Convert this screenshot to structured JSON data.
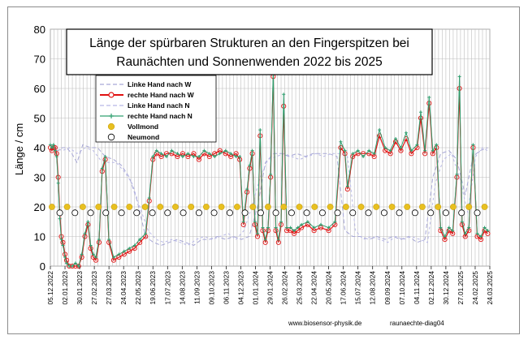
{
  "chart_data": {
    "type": "line",
    "title_line1": "Länge der spürbaren Strukturen an den Fingerspitzen bei",
    "title_line2": "Raunächten  und Sonnenwenden 2022 bis 2025",
    "ylabel": "Länge / cm",
    "xlabel": "",
    "ylim": [
      0,
      80
    ],
    "y_ticks": [
      "0",
      "10",
      "20",
      "30",
      "40",
      "50",
      "60",
      "70",
      "80"
    ],
    "x_range": [
      "2022-12-05",
      "2025-03-24"
    ],
    "x_ticks": [
      "05.12.2022",
      "02.01.2023",
      "30.01.2023",
      "27.02.2023",
      "27.03.2023",
      "24.04.2023",
      "22.05.2023",
      "19.06.2023",
      "17.07.2023",
      "14.08.2023",
      "11.09.2023",
      "09.10.2023",
      "06.11.2023",
      "04.12.2023",
      "01.01.2024",
      "29.01.2024",
      "26.02.2024",
      "25.03.2024",
      "22.04.2024",
      "20.05.2024",
      "17.06.2024",
      "15.07.2024",
      "12.08.2024",
      "09.09.2024",
      "07.10.2024",
      "04.11.2024",
      "02.12.2024",
      "30.12.2024",
      "27.01.2025",
      "24.02.2025",
      "24.03.2025"
    ],
    "grid": true,
    "legend_placement": "top-left",
    "legend": [
      {
        "label": "Linke Hand nach W",
        "style": "dashed",
        "color": "#a7a7d6"
      },
      {
        "label": "rechte Hand nach W",
        "style": "line-circle",
        "color": "#e01010"
      },
      {
        "label": "Linke Hand nach N",
        "style": "dashed",
        "color": "#b8b8e6"
      },
      {
        "label": "rechte Hand nach N",
        "style": "line-plus",
        "color": "#30a070"
      },
      {
        "label": "Vollmond",
        "style": "dot",
        "color": "#e8c020"
      },
      {
        "label": "Neumond",
        "style": "open-circle",
        "color": "#000000"
      }
    ],
    "footer_url": "www.biosensor-physik.de",
    "footer_id": "raunaechte-diag04",
    "series": [
      {
        "name": "Linke Hand nach W",
        "x": [
          "2022-12-05",
          "2022-12-12",
          "2022-12-20",
          "2022-12-28",
          "2023-01-05",
          "2023-01-15",
          "2023-01-25",
          "2023-02-05",
          "2023-02-20",
          "2023-03-05",
          "2023-03-20",
          "2023-04-05",
          "2023-04-20",
          "2023-05-05",
          "2023-05-20",
          "2023-06-05",
          "2023-06-20",
          "2023-07-05",
          "2023-07-20",
          "2023-08-05",
          "2023-08-20",
          "2023-09-05",
          "2023-09-20",
          "2023-10-05",
          "2023-10-20",
          "2023-11-05",
          "2023-11-20",
          "2023-12-05",
          "2023-12-20",
          "2024-01-05",
          "2024-01-20",
          "2024-02-05",
          "2024-02-20",
          "2024-03-05",
          "2024-03-20",
          "2024-04-05",
          "2024-04-20",
          "2024-05-05",
          "2024-05-20",
          "2024-06-05",
          "2024-06-20",
          "2024-07-05",
          "2024-07-20",
          "2024-08-05",
          "2024-08-20",
          "2024-09-05",
          "2024-09-20",
          "2024-10-05",
          "2024-10-20",
          "2024-11-05",
          "2024-11-20",
          "2024-12-05",
          "2024-12-20",
          "2025-01-05",
          "2025-01-20",
          "2025-02-05",
          "2025-02-20",
          "2025-03-05",
          "2025-03-20"
        ],
        "values": [
          40,
          39,
          39,
          40,
          40,
          38,
          35,
          41,
          40,
          40,
          37,
          36,
          34,
          30,
          22,
          10,
          8,
          7,
          8,
          9,
          8,
          7,
          9,
          9,
          10,
          9,
          10,
          9,
          10,
          20,
          35,
          38,
          38,
          37,
          38,
          37,
          38,
          38,
          38,
          37,
          12,
          10,
          10,
          9,
          10,
          9,
          10,
          9,
          10,
          8,
          9,
          30,
          38,
          39,
          36,
          24,
          37,
          39,
          40
        ]
      },
      {
        "name": "Linke Hand nach N",
        "x": [
          "2022-12-05",
          "2022-12-15",
          "2022-12-28",
          "2023-01-10",
          "2023-01-25",
          "2023-02-10",
          "2023-02-25",
          "2023-03-10",
          "2023-03-25",
          "2023-04-10",
          "2023-04-25",
          "2023-05-10",
          "2023-05-25",
          "2023-06-10",
          "2023-06-25",
          "2023-07-10",
          "2023-07-25",
          "2023-08-10",
          "2023-08-25",
          "2023-09-10",
          "2023-09-25",
          "2023-10-10",
          "2023-10-25",
          "2023-11-10",
          "2023-11-25",
          "2023-12-10",
          "2023-12-25",
          "2024-01-10",
          "2024-01-25",
          "2024-02-10",
          "2024-02-25",
          "2024-03-10",
          "2024-03-25",
          "2024-04-10",
          "2024-04-25",
          "2024-05-10",
          "2024-05-25",
          "2024-06-10",
          "2024-06-25",
          "2024-07-10",
          "2024-07-25",
          "2024-08-10",
          "2024-08-25",
          "2024-09-10",
          "2024-09-25",
          "2024-10-10",
          "2024-10-25",
          "2024-11-10",
          "2024-11-25",
          "2024-12-10",
          "2024-12-25",
          "2025-01-10",
          "2025-01-25",
          "2025-02-10",
          "2025-02-25",
          "2025-03-10",
          "2025-03-20"
        ],
        "values": [
          39,
          40,
          39,
          40,
          38,
          40,
          39,
          36,
          35,
          35,
          32,
          28,
          20,
          12,
          9,
          8,
          9,
          8,
          7,
          9,
          10,
          9,
          10,
          11,
          9,
          12,
          20,
          30,
          36,
          37,
          38,
          37,
          36,
          37,
          38,
          37,
          38,
          38,
          37,
          12,
          9,
          10,
          9,
          8,
          10,
          9,
          10,
          9,
          8,
          28,
          36,
          38,
          30,
          18,
          37,
          40,
          39
        ]
      },
      {
        "name": "rechte Hand nach W",
        "x": [
          "2022-12-05",
          "2022-12-08",
          "2022-12-11",
          "2022-12-14",
          "2022-12-17",
          "2022-12-20",
          "2022-12-23",
          "2022-12-26",
          "2022-12-29",
          "2023-01-02",
          "2023-01-05",
          "2023-01-10",
          "2023-01-16",
          "2023-01-22",
          "2023-01-28",
          "2023-02-03",
          "2023-02-09",
          "2023-02-15",
          "2023-02-20",
          "2023-02-25",
          "2023-03-02",
          "2023-03-08",
          "2023-03-14",
          "2023-03-20",
          "2023-03-27",
          "2023-04-05",
          "2023-04-15",
          "2023-04-25",
          "2023-05-05",
          "2023-05-15",
          "2023-05-25",
          "2023-06-05",
          "2023-06-12",
          "2023-06-19",
          "2023-06-26",
          "2023-07-05",
          "2023-07-15",
          "2023-07-25",
          "2023-08-05",
          "2023-08-15",
          "2023-08-25",
          "2023-09-05",
          "2023-09-15",
          "2023-09-25",
          "2023-10-05",
          "2023-10-15",
          "2023-10-25",
          "2023-11-05",
          "2023-11-15",
          "2023-11-25",
          "2023-12-02",
          "2023-12-09",
          "2023-12-16",
          "2023-12-21",
          "2023-12-26",
          "2023-12-31",
          "2024-01-05",
          "2024-01-10",
          "2024-01-15",
          "2024-01-20",
          "2024-01-25",
          "2024-01-30",
          "2024-02-04",
          "2024-02-09",
          "2024-02-14",
          "2024-02-19",
          "2024-02-24",
          "2024-03-01",
          "2024-03-08",
          "2024-03-15",
          "2024-03-22",
          "2024-03-29",
          "2024-04-10",
          "2024-04-22",
          "2024-05-05",
          "2024-05-20",
          "2024-06-01",
          "2024-06-12",
          "2024-06-20",
          "2024-06-25",
          "2024-07-05",
          "2024-07-15",
          "2024-07-25",
          "2024-08-05",
          "2024-08-15",
          "2024-08-25",
          "2024-09-05",
          "2024-09-15",
          "2024-09-25",
          "2024-10-05",
          "2024-10-15",
          "2024-10-25",
          "2024-11-05",
          "2024-11-12",
          "2024-11-20",
          "2024-11-28",
          "2024-12-05",
          "2024-12-12",
          "2024-12-20",
          "2024-12-28",
          "2025-01-05",
          "2025-01-12",
          "2025-01-20",
          "2025-01-25",
          "2025-01-30",
          "2025-02-05",
          "2025-02-12",
          "2025-02-20",
          "2025-02-28",
          "2025-03-07",
          "2025-03-14",
          "2025-03-20"
        ],
        "values": [
          40,
          39,
          40,
          40,
          38,
          30,
          18,
          10,
          8,
          4,
          2,
          0,
          0,
          0,
          0,
          3,
          10,
          14,
          6,
          3,
          2,
          8,
          32,
          36,
          8,
          2,
          3,
          4,
          5,
          6,
          8,
          10,
          22,
          36,
          38,
          37,
          38,
          38,
          37,
          38,
          37,
          38,
          36,
          38,
          37,
          38,
          39,
          38,
          37,
          38,
          36,
          14,
          25,
          33,
          38,
          14,
          10,
          44,
          12,
          8,
          12,
          30,
          64,
          12,
          8,
          14,
          54,
          12,
          12,
          11,
          12,
          13,
          14,
          12,
          13,
          12,
          14,
          40,
          38,
          26,
          37,
          38,
          38,
          38,
          37,
          44,
          39,
          38,
          42,
          39,
          43,
          38,
          40,
          50,
          38,
          55,
          38,
          40,
          12,
          9,
          12,
          11,
          30,
          60,
          14,
          10,
          12,
          40,
          10,
          9,
          12,
          11
        ]
      },
      {
        "name": "rechte Hand nach N",
        "x": [
          "2022-12-05",
          "2022-12-08",
          "2022-12-11",
          "2022-12-14",
          "2022-12-17",
          "2022-12-20",
          "2022-12-23",
          "2022-12-26",
          "2022-12-29",
          "2023-01-02",
          "2023-01-05",
          "2023-01-10",
          "2023-01-16",
          "2023-01-22",
          "2023-01-28",
          "2023-02-03",
          "2023-02-09",
          "2023-02-15",
          "2023-02-20",
          "2023-02-25",
          "2023-03-02",
          "2023-03-08",
          "2023-03-14",
          "2023-03-20",
          "2023-03-27",
          "2023-04-05",
          "2023-04-15",
          "2023-04-25",
          "2023-05-05",
          "2023-05-15",
          "2023-05-25",
          "2023-06-05",
          "2023-06-12",
          "2023-06-19",
          "2023-06-26",
          "2023-07-05",
          "2023-07-15",
          "2023-07-25",
          "2023-08-05",
          "2023-08-15",
          "2023-08-25",
          "2023-09-05",
          "2023-09-15",
          "2023-09-25",
          "2023-10-05",
          "2023-10-15",
          "2023-10-25",
          "2023-11-05",
          "2023-11-15",
          "2023-11-25",
          "2023-12-02",
          "2023-12-09",
          "2023-12-16",
          "2023-12-21",
          "2023-12-26",
          "2023-12-31",
          "2024-01-05",
          "2024-01-10",
          "2024-01-15",
          "2024-01-20",
          "2024-01-25",
          "2024-01-30",
          "2024-02-04",
          "2024-02-09",
          "2024-02-14",
          "2024-02-19",
          "2024-02-24",
          "2024-03-01",
          "2024-03-08",
          "2024-03-15",
          "2024-03-22",
          "2024-03-29",
          "2024-04-10",
          "2024-04-22",
          "2024-05-05",
          "2024-05-20",
          "2024-06-01",
          "2024-06-12",
          "2024-06-20",
          "2024-06-25",
          "2024-07-05",
          "2024-07-15",
          "2024-07-25",
          "2024-08-05",
          "2024-08-15",
          "2024-08-25",
          "2024-09-05",
          "2024-09-15",
          "2024-09-25",
          "2024-10-05",
          "2024-10-15",
          "2024-10-25",
          "2024-11-05",
          "2024-11-12",
          "2024-11-20",
          "2024-11-28",
          "2024-12-05",
          "2024-12-12",
          "2024-12-20",
          "2024-12-28",
          "2025-01-05",
          "2025-01-12",
          "2025-01-20",
          "2025-01-25",
          "2025-01-30",
          "2025-02-05",
          "2025-02-12",
          "2025-02-20",
          "2025-02-28",
          "2025-03-07",
          "2025-03-14",
          "2025-03-20"
        ],
        "values": [
          41,
          40,
          41,
          39,
          37,
          28,
          16,
          9,
          7,
          3,
          1,
          0,
          0,
          1,
          0,
          4,
          11,
          15,
          7,
          4,
          3,
          9,
          33,
          37,
          9,
          3,
          4,
          5,
          6,
          7,
          9,
          11,
          23,
          37,
          39,
          38,
          37,
          39,
          38,
          37,
          38,
          37,
          37,
          39,
          38,
          37,
          38,
          39,
          38,
          37,
          37,
          15,
          26,
          34,
          39,
          15,
          11,
          46,
          13,
          9,
          13,
          31,
          66,
          13,
          9,
          15,
          58,
          13,
          13,
          12,
          13,
          14,
          15,
          13,
          14,
          13,
          15,
          42,
          39,
          27,
          38,
          39,
          37,
          39,
          38,
          46,
          40,
          39,
          43,
          40,
          45,
          39,
          41,
          52,
          39,
          57,
          39,
          41,
          13,
          10,
          13,
          12,
          31,
          64,
          15,
          11,
          13,
          41,
          11,
          10,
          13,
          12
        ]
      },
      {
        "name": "Vollmond",
        "x": [
          "2022-12-08",
          "2023-01-06",
          "2023-02-05",
          "2023-03-07",
          "2023-04-06",
          "2023-05-05",
          "2023-06-04",
          "2023-07-03",
          "2023-08-01",
          "2023-08-31",
          "2023-09-29",
          "2023-10-28",
          "2023-11-27",
          "2023-12-27",
          "2024-01-25",
          "2024-02-24",
          "2024-03-25",
          "2024-04-23",
          "2024-05-23",
          "2024-06-22",
          "2024-07-21",
          "2024-08-19",
          "2024-09-18",
          "2024-10-17",
          "2024-11-15",
          "2024-12-15",
          "2025-01-13",
          "2025-02-12",
          "2025-03-14"
        ],
        "values": [
          20,
          20,
          20,
          20,
          20,
          20,
          20,
          20,
          20,
          20,
          20,
          20,
          20,
          20,
          20,
          20,
          20,
          20,
          20,
          20,
          20,
          20,
          20,
          20,
          20,
          20,
          20,
          20,
          20
        ]
      },
      {
        "name": "Neumond",
        "x": [
          "2022-12-23",
          "2023-01-21",
          "2023-02-20",
          "2023-03-21",
          "2023-04-20",
          "2023-05-19",
          "2023-06-18",
          "2023-07-17",
          "2023-08-16",
          "2023-09-15",
          "2023-10-14",
          "2023-11-13",
          "2023-12-12",
          "2024-01-11",
          "2024-02-09",
          "2024-03-10",
          "2024-04-08",
          "2024-05-08",
          "2024-06-06",
          "2024-07-05",
          "2024-08-04",
          "2024-09-03",
          "2024-10-02",
          "2024-11-01",
          "2024-12-01",
          "2024-12-30",
          "2025-01-29",
          "2025-02-28"
        ],
        "values": [
          18,
          18,
          18,
          18,
          18,
          18,
          18,
          18,
          18,
          18,
          18,
          18,
          18,
          18,
          18,
          18,
          18,
          18,
          18,
          18,
          18,
          18,
          18,
          18,
          18,
          18,
          18,
          18
        ]
      }
    ]
  }
}
